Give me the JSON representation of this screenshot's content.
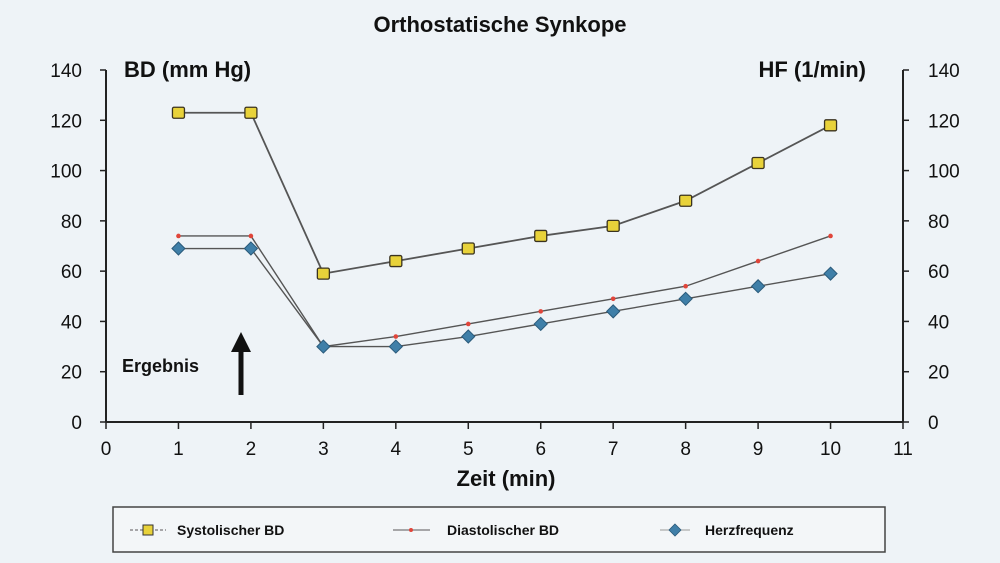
{
  "chart_data": {
    "type": "line",
    "title": "Orthostatische Synkope",
    "xlabel": "Zeit (min)",
    "ylabel": "BD (mm Hg)",
    "ylabel_right": "HF (1/min)",
    "x": [
      1,
      2,
      3,
      4,
      5,
      6,
      7,
      8,
      9,
      10
    ],
    "xlim": [
      0,
      11
    ],
    "ylim": [
      0,
      140
    ],
    "x_ticks": [
      0,
      1,
      2,
      3,
      4,
      5,
      6,
      7,
      8,
      9,
      10,
      11
    ],
    "y_ticks": [
      0,
      20,
      40,
      60,
      80,
      100,
      120,
      140
    ],
    "y_ticks_right": [
      0,
      20,
      40,
      60,
      80,
      100,
      120,
      140
    ],
    "grid": false,
    "legend_position": "bottom",
    "series": [
      {
        "name": "Systolischer BD",
        "marker": "square",
        "color": "#e8d23a",
        "values": [
          123,
          123,
          59,
          64,
          69,
          74,
          78,
          88,
          103,
          118
        ]
      },
      {
        "name": "Diastolischer BD",
        "marker": "dot",
        "color": "#e0453a",
        "values": [
          74,
          74,
          30,
          34,
          39,
          44,
          49,
          54,
          64,
          74
        ]
      },
      {
        "name": "Herzfrequenz",
        "marker": "diamond",
        "color": "#3f7fa8",
        "values": [
          69,
          69,
          30,
          30,
          34,
          39,
          44,
          49,
          54,
          59
        ]
      }
    ],
    "annotations": [
      {
        "text": "Ergebnis",
        "x": 1.3,
        "y": 22
      },
      {
        "type": "arrow-up",
        "x": 1.9,
        "y_from": 10,
        "y_to": 35
      }
    ]
  },
  "labels": {
    "title": "Orthostatische Synkope",
    "left_unit": "BD (mm Hg)",
    "right_unit": "HF (1/min)",
    "xlabel": "Zeit (min)",
    "annotation": "Ergebnis"
  },
  "legend": {
    "items": [
      {
        "label": "Systolischer BD"
      },
      {
        "label": "Diastolischer BD"
      },
      {
        "label": "Herzfrequenz"
      }
    ]
  }
}
